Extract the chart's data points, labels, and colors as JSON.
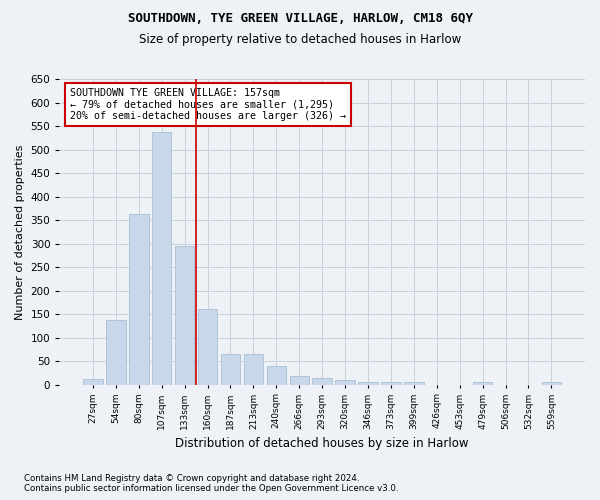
{
  "title": "SOUTHDOWN, TYE GREEN VILLAGE, HARLOW, CM18 6QY",
  "subtitle": "Size of property relative to detached houses in Harlow",
  "xlabel": "Distribution of detached houses by size in Harlow",
  "ylabel": "Number of detached properties",
  "bar_color": "#c8d8ea",
  "bar_edgecolor": "#a8c0d4",
  "grid_color": "#c8d0dc",
  "categories": [
    "27sqm",
    "54sqm",
    "80sqm",
    "107sqm",
    "133sqm",
    "160sqm",
    "187sqm",
    "213sqm",
    "240sqm",
    "266sqm",
    "293sqm",
    "320sqm",
    "346sqm",
    "373sqm",
    "399sqm",
    "426sqm",
    "453sqm",
    "479sqm",
    "506sqm",
    "532sqm",
    "559sqm"
  ],
  "values": [
    12,
    137,
    362,
    537,
    295,
    160,
    65,
    65,
    40,
    18,
    15,
    10,
    5,
    5,
    5,
    0,
    0,
    5,
    0,
    0,
    5
  ],
  "ylim": [
    0,
    650
  ],
  "yticks": [
    0,
    50,
    100,
    150,
    200,
    250,
    300,
    350,
    400,
    450,
    500,
    550,
    600,
    650
  ],
  "vline_x": 4.5,
  "vline_color": "#cc0000",
  "annotation_text": "SOUTHDOWN TYE GREEN VILLAGE: 157sqm\n← 79% of detached houses are smaller (1,295)\n20% of semi-detached houses are larger (326) →",
  "footnote1": "Contains HM Land Registry data © Crown copyright and database right 2024.",
  "footnote2": "Contains public sector information licensed under the Open Government Licence v3.0.",
  "bg_color": "#eef2f7",
  "plot_bg_color": "#eef2f7"
}
